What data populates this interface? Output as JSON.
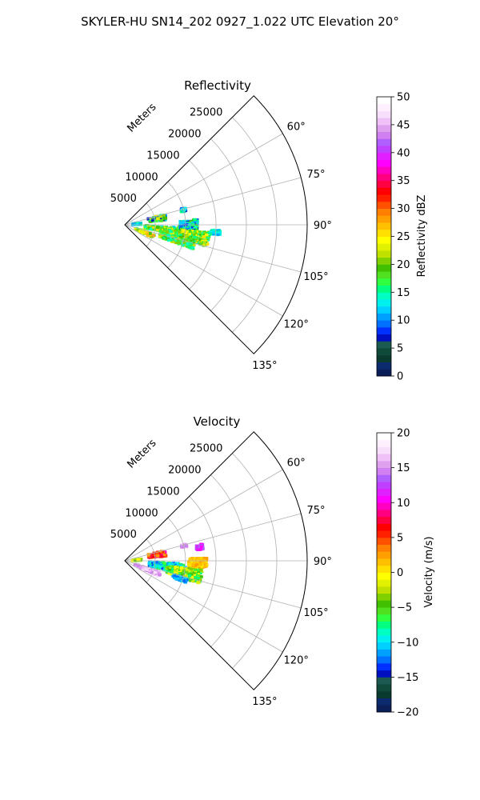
{
  "figure": {
    "suptitle": "SKYLER-HU  SN14_202  0927_1.022 UTC Elevation 20°"
  },
  "chart_data": [
    {
      "type": "heatmap",
      "projection": "polar-sector",
      "title": "Reflectivity",
      "radial_label": "Meters",
      "radial_ticks": [
        5000,
        10000,
        15000,
        20000,
        25000
      ],
      "radial_tick_labels": [
        "5000",
        "10000",
        "15000",
        "20000",
        "25000"
      ],
      "rmax": 30000,
      "azimuth_range_deg": [
        45,
        135
      ],
      "azimuth_ticks": [
        60,
        75,
        90,
        105,
        120,
        135
      ],
      "azimuth_tick_labels": [
        "60°",
        "75°",
        "90°",
        "105°",
        "120°",
        "135°"
      ],
      "grid": true,
      "colorbar": {
        "label": "Reflectivity dBZ",
        "min": 0,
        "max": 50,
        "ticks": [
          0,
          5,
          10,
          15,
          20,
          25,
          30,
          35,
          40,
          45,
          50
        ],
        "tick_labels": [
          "0",
          "5",
          "10",
          "15",
          "20",
          "25",
          "30",
          "35",
          "40",
          "45",
          "50"
        ],
        "colors": [
          "#0a1f5a",
          "#0c2a6e",
          "#0b3b2f",
          "#104a3a",
          "#1a5a50",
          "#0010c0",
          "#0030ff",
          "#0070ff",
          "#00a0ff",
          "#00d0ff",
          "#00f0f0",
          "#00ffc0",
          "#00ff80",
          "#30ff40",
          "#50e020",
          "#40c000",
          "#80d000",
          "#c0e000",
          "#e0f000",
          "#ffff00",
          "#ffe000",
          "#ffc000",
          "#ffa000",
          "#ff8000",
          "#ff5000",
          "#ff2000",
          "#ff0000",
          "#ff0040",
          "#ff0080",
          "#ff00c0",
          "#ff00ff",
          "#e020ff",
          "#c040ff",
          "#b060ff",
          "#d080f0",
          "#e0a0f0",
          "#f0c0f8",
          "#f8e0fc",
          "#fff0ff",
          "#ffffff"
        ]
      },
      "clusters": [
        {
          "az": 80,
          "r": 5400,
          "dr": 1400,
          "daz": 4,
          "vlo": 6,
          "vhi": 24
        },
        {
          "az": 76,
          "r": 10000,
          "dr": 400,
          "daz": 1.5,
          "vlo": 6,
          "vhi": 16
        },
        {
          "az": 97,
          "r": 6500,
          "dr": 3200,
          "daz": 4,
          "vlo": 12,
          "vhi": 26
        },
        {
          "az": 92,
          "r": 10500,
          "dr": 1500,
          "daz": 6,
          "vlo": 6,
          "vhi": 20
        },
        {
          "az": 100,
          "r": 10000,
          "dr": 4000,
          "daz": 5,
          "vlo": 14,
          "vhi": 26
        },
        {
          "az": 107,
          "r": 9000,
          "dr": 3000,
          "daz": 3,
          "vlo": 14,
          "vhi": 24
        },
        {
          "az": 112,
          "r": 3500,
          "dr": 1600,
          "daz": 3,
          "vlo": 16,
          "vhi": 28
        },
        {
          "az": 95,
          "r": 15000,
          "dr": 800,
          "daz": 1.5,
          "vlo": 10,
          "vhi": 16
        },
        {
          "az": 88,
          "r": 2000,
          "dr": 700,
          "daz": 3,
          "vlo": 10,
          "vhi": 16
        }
      ]
    },
    {
      "type": "heatmap",
      "projection": "polar-sector",
      "title": "Velocity",
      "radial_label": "Meters",
      "radial_ticks": [
        5000,
        10000,
        15000,
        20000,
        25000
      ],
      "radial_tick_labels": [
        "5000",
        "10000",
        "15000",
        "20000",
        "25000"
      ],
      "rmax": 30000,
      "azimuth_range_deg": [
        45,
        135
      ],
      "azimuth_ticks": [
        60,
        75,
        90,
        105,
        120,
        135
      ],
      "azimuth_tick_labels": [
        "60°",
        "75°",
        "90°",
        "105°",
        "120°",
        "135°"
      ],
      "grid": true,
      "colorbar": {
        "label": "Velocity (m/s)",
        "min": -20,
        "max": 20,
        "ticks": [
          -20,
          -15,
          -10,
          -5,
          0,
          5,
          10,
          15,
          20
        ],
        "tick_labels": [
          "−20",
          "−15",
          "−10",
          "−5",
          "0",
          "5",
          "10",
          "15",
          "20"
        ],
        "colors": [
          "#0a1f5a",
          "#0c2a6e",
          "#0b3b2f",
          "#104a3a",
          "#1a5a50",
          "#0010c0",
          "#0030ff",
          "#0070ff",
          "#00a0ff",
          "#00d0ff",
          "#00f0f0",
          "#00ffc0",
          "#00ff80",
          "#30ff40",
          "#50e020",
          "#40c000",
          "#80d000",
          "#c0e000",
          "#e0f000",
          "#ffff00",
          "#ffe000",
          "#ffc000",
          "#ffa000",
          "#ff8000",
          "#ff5000",
          "#ff2000",
          "#ff0000",
          "#ff0040",
          "#ff0080",
          "#ff00c0",
          "#ff00ff",
          "#e020ff",
          "#c040ff",
          "#b060ff",
          "#d080f0",
          "#e0a0f0",
          "#f0c0f8",
          "#f8e0fc",
          "#fff0ff",
          "#ffffff"
        ]
      },
      "clusters": [
        {
          "az": 80,
          "r": 5400,
          "dr": 1400,
          "daz": 4,
          "vlo": 2,
          "vhi": 10
        },
        {
          "az": 76,
          "r": 10000,
          "dr": 400,
          "daz": 1.5,
          "vlo": 14,
          "vhi": 17
        },
        {
          "az": 80,
          "r": 12500,
          "dr": 500,
          "daz": 2,
          "vlo": 10,
          "vhi": 14
        },
        {
          "az": 98,
          "r": 7000,
          "dr": 3000,
          "daz": 5,
          "vlo": -14,
          "vhi": -6
        },
        {
          "az": 92,
          "r": 12000,
          "dr": 1500,
          "daz": 4,
          "vlo": 0,
          "vhi": 3
        },
        {
          "az": 102,
          "r": 10000,
          "dr": 3000,
          "daz": 5,
          "vlo": -8,
          "vhi": 0
        },
        {
          "az": 112,
          "r": 4000,
          "dr": 2200,
          "daz": 3,
          "vlo": 14,
          "vhi": 18
        },
        {
          "az": 108,
          "r": 9500,
          "dr": 1200,
          "daz": 2,
          "vlo": -13,
          "vhi": -9
        },
        {
          "az": 88,
          "r": 2000,
          "dr": 700,
          "daz": 3,
          "vlo": -6,
          "vhi": 0
        }
      ]
    }
  ]
}
